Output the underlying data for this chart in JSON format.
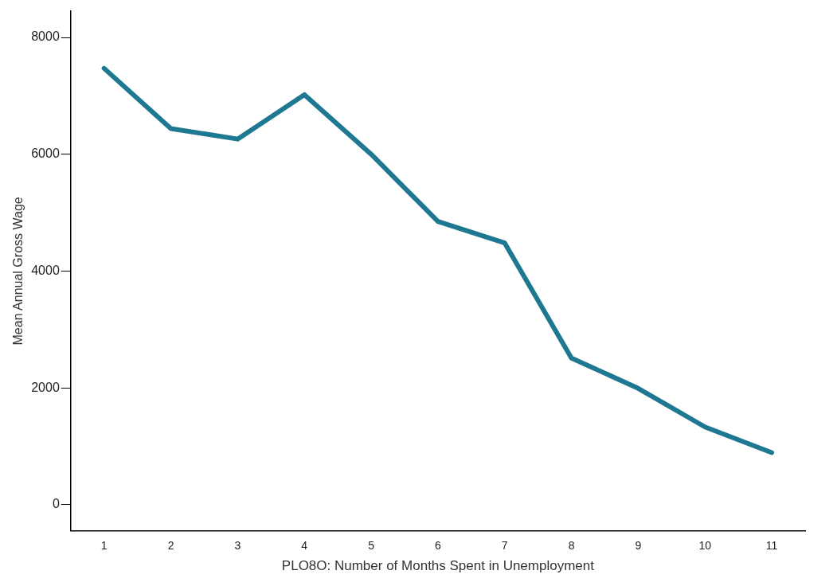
{
  "chart_data": {
    "type": "line",
    "xlabel": "PLO8O: Number of Months Spent in Unemployment",
    "ylabel": "Mean Annual Gross Wage",
    "categories": [
      "1",
      "2",
      "3",
      "4",
      "5",
      "6",
      "7",
      "8",
      "9",
      "10",
      "11"
    ],
    "series": [
      {
        "color": "#1f7891",
        "values": [
          7470,
          6440,
          6260,
          7020,
          6000,
          4850,
          4480,
          2510,
          1990,
          1330,
          890
        ]
      }
    ],
    "ylim": [
      -450,
      8450
    ],
    "yticks": [
      0,
      2000,
      4000,
      6000,
      8000
    ],
    "grid": false,
    "legend": false,
    "marker": "none"
  }
}
